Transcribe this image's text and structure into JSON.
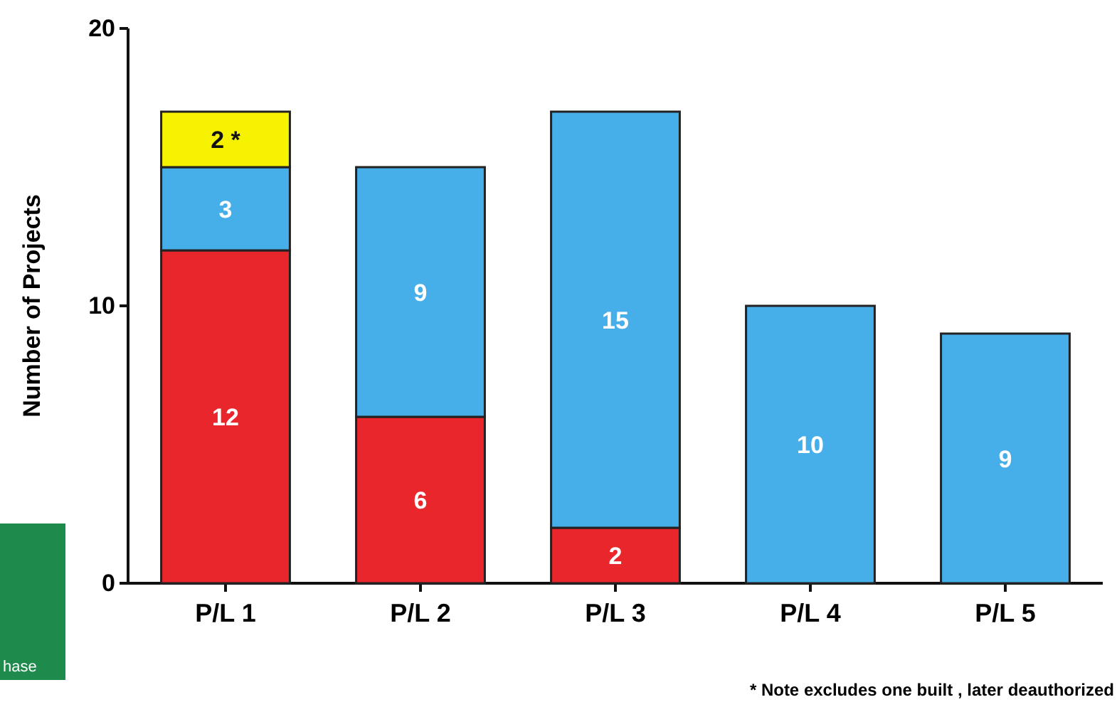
{
  "chart_data": {
    "type": "bar",
    "stacked": true,
    "ylabel": "Number of Projects",
    "categories": [
      "P/L 1",
      "P/L 2",
      "P/L 3",
      "P/L 4",
      "P/L 5"
    ],
    "series": [
      {
        "color": "#e8262b",
        "values": [
          12,
          6,
          2,
          null,
          null
        ],
        "value_labels": [
          "12",
          "6",
          "2",
          null,
          null
        ]
      },
      {
        "color": "#46aee8",
        "values": [
          3,
          9,
          15,
          10,
          9
        ],
        "value_labels": [
          "3",
          "9",
          "15",
          "10",
          "9"
        ]
      },
      {
        "color": "#f7f200",
        "values": [
          2,
          null,
          null,
          null,
          null
        ],
        "value_labels": [
          "2 *",
          null,
          null,
          null,
          null
        ]
      }
    ],
    "ylim": [
      0,
      20
    ],
    "yticks": [
      0,
      10,
      20
    ],
    "grid": false,
    "annotations": [
      "* Note excludes one built , later deauthorized",
      "hase"
    ]
  }
}
